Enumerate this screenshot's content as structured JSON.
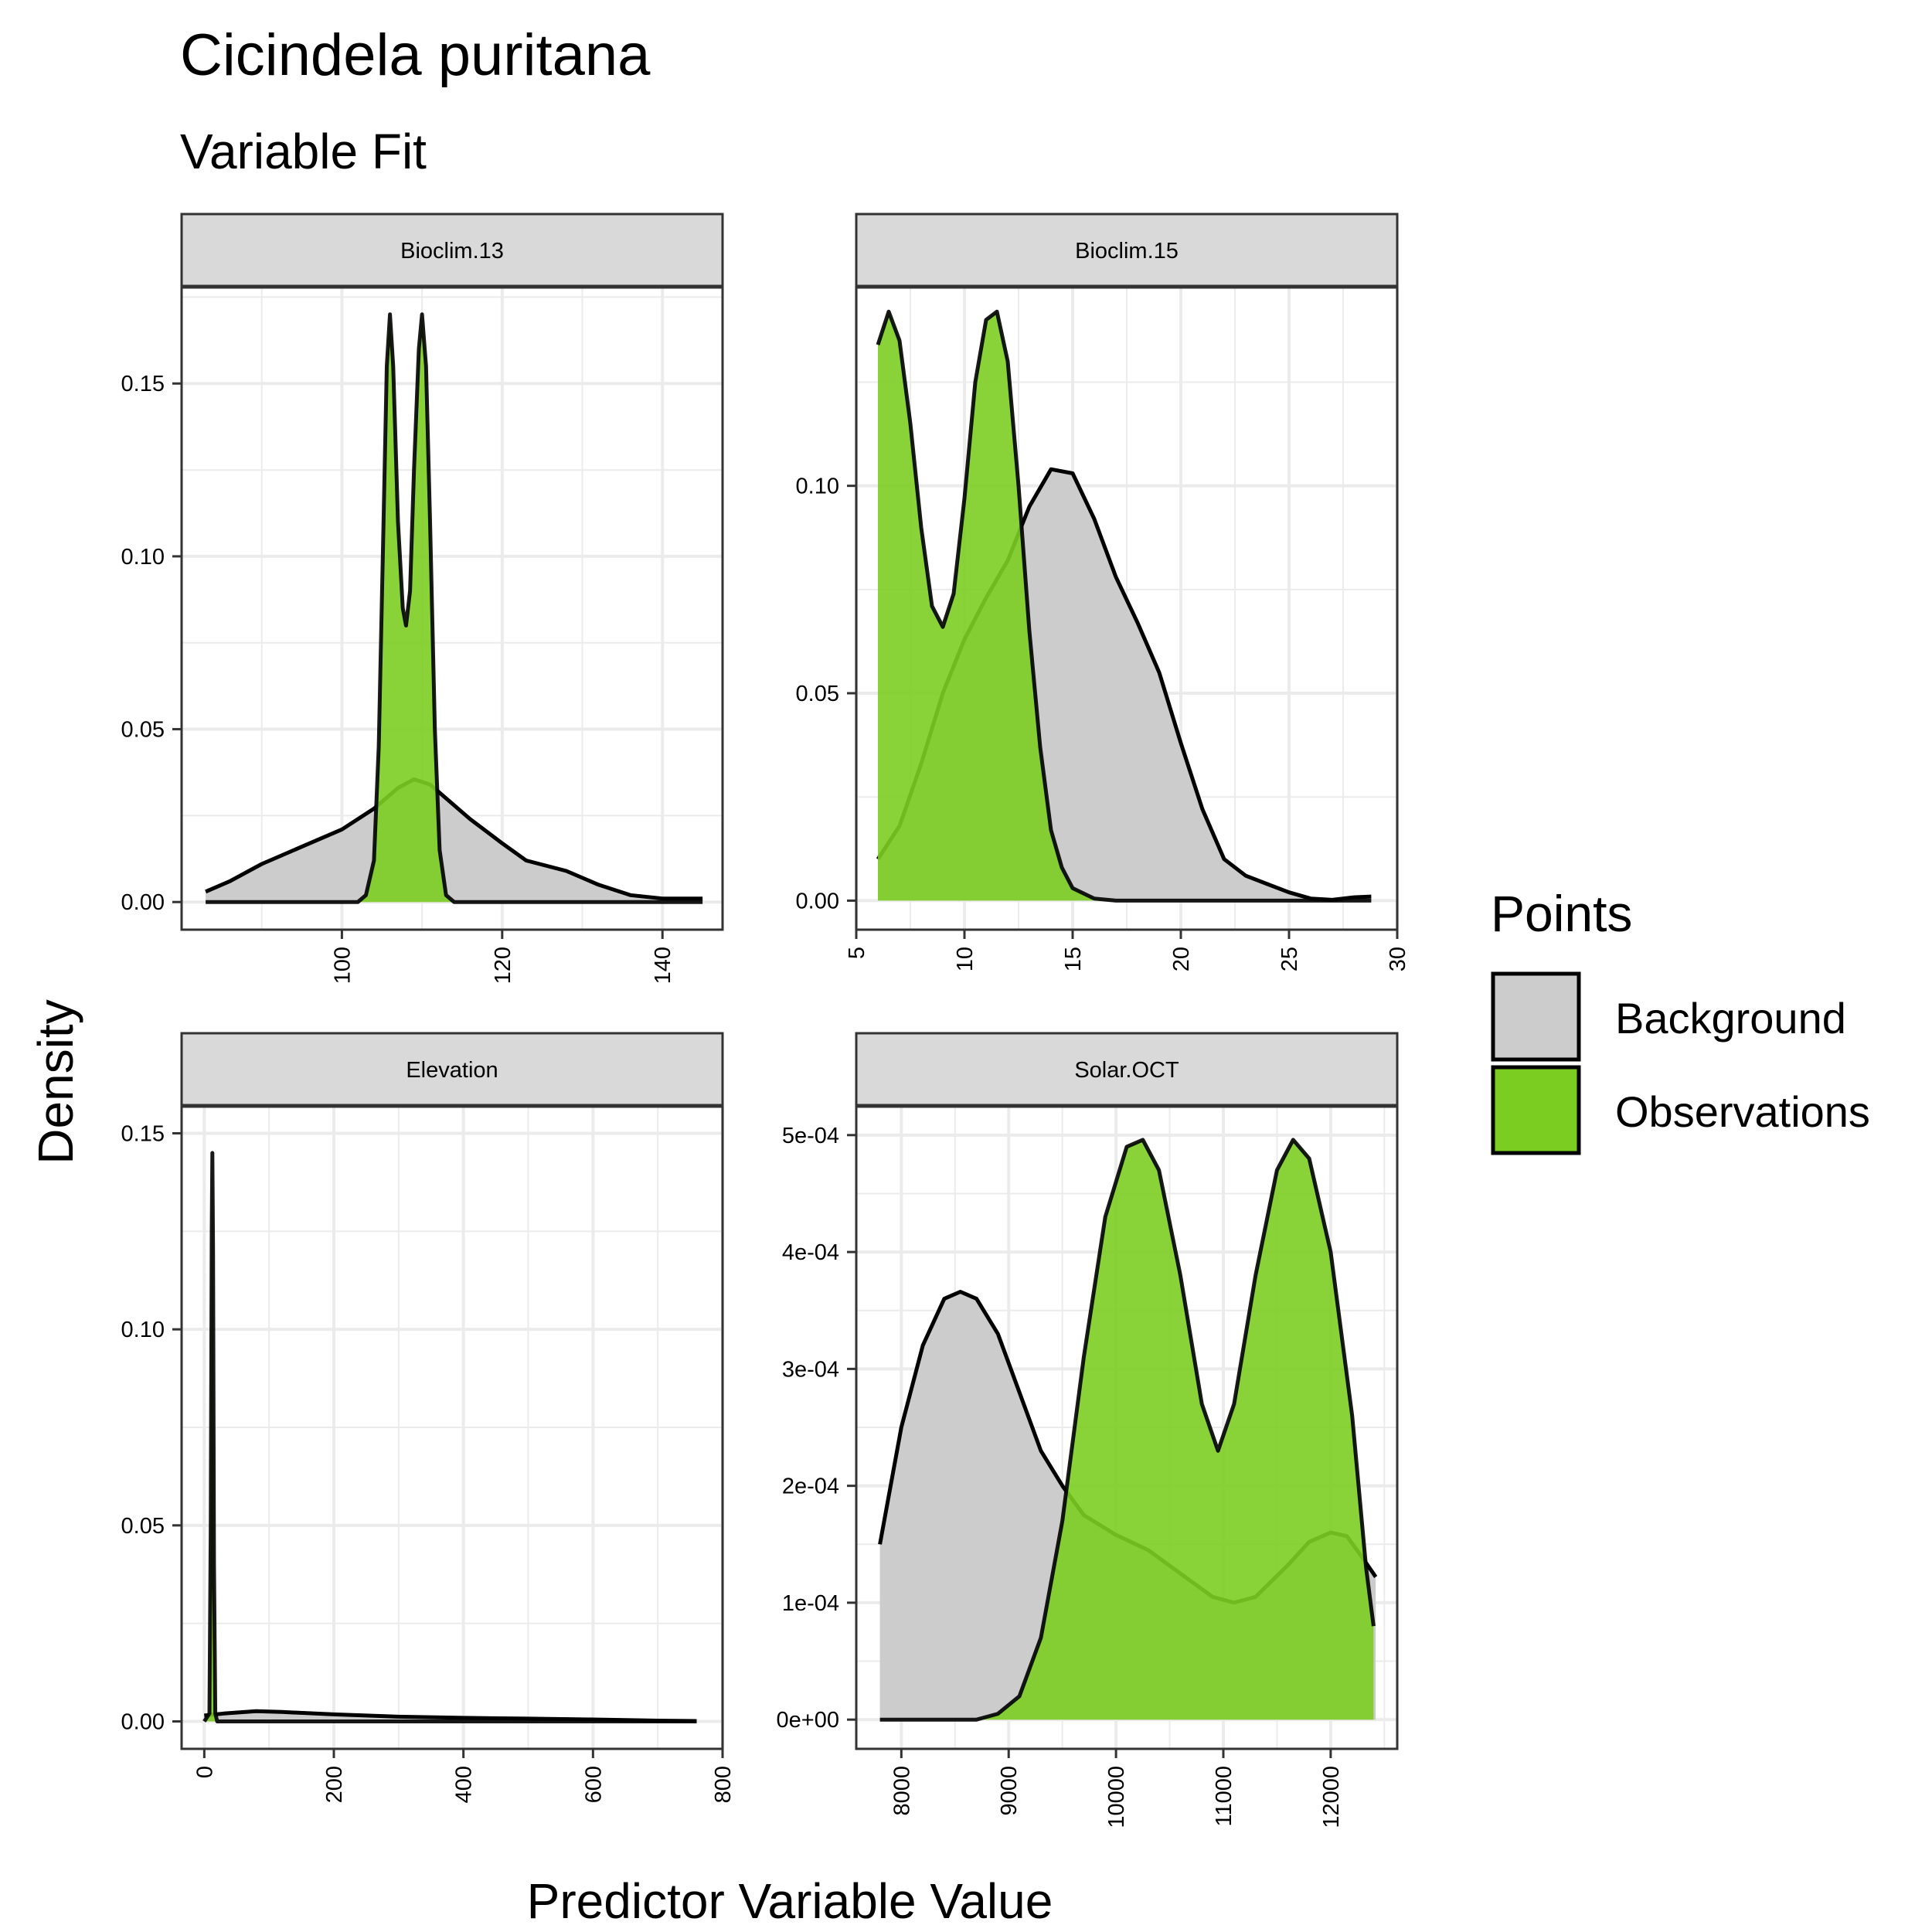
{
  "title": "Cicindela puritana",
  "subtitle": "Variable Fit",
  "ylabel": "Density",
  "xlabel": "Predictor Variable Value",
  "legend": {
    "title": "Points",
    "items": [
      {
        "label": "Background",
        "color": "#cccccc"
      },
      {
        "label": "Observations",
        "color": "#7ccd22"
      }
    ]
  },
  "colors": {
    "background_fill": "#cccccc",
    "observation_fill": "#7ccd22",
    "strip_fill": "#d9d9d9",
    "grid": "#ebebeb",
    "line": "#000000"
  },
  "chart_data": [
    {
      "type": "area",
      "panel": "Bioclim.13",
      "xlim": [
        80,
        147.5
      ],
      "ylim": [
        -0.008,
        0.178
      ],
      "xticks": [
        100,
        120,
        140
      ],
      "xtick_labels": [
        "100",
        "120",
        "140"
      ],
      "yticks": [
        0,
        0.05,
        0.1,
        0.15
      ],
      "ytick_labels": [
        "0.00",
        "0.05",
        "0.10",
        "0.15"
      ],
      "series": [
        {
          "name": "Background",
          "points": [
            [
              83,
              0.003
            ],
            [
              86,
              0.006
            ],
            [
              90,
              0.011
            ],
            [
              95,
              0.016
            ],
            [
              100,
              0.021
            ],
            [
              104,
              0.027
            ],
            [
              107,
              0.033
            ],
            [
              109,
              0.0355
            ],
            [
              111,
              0.034
            ],
            [
              113,
              0.03
            ],
            [
              116,
              0.024
            ],
            [
              120,
              0.017
            ],
            [
              123,
              0.012
            ],
            [
              128,
              0.009
            ],
            [
              132,
              0.005
            ],
            [
              136,
              0.002
            ],
            [
              140,
              0.001
            ],
            [
              145,
              0.001
            ]
          ]
        },
        {
          "name": "Observations",
          "points": [
            [
              83,
              0
            ],
            [
              102,
              0
            ],
            [
              103,
              0.002
            ],
            [
              104,
              0.012
            ],
            [
              104.6,
              0.045
            ],
            [
              105.2,
              0.11
            ],
            [
              105.6,
              0.155
            ],
            [
              106,
              0.17
            ],
            [
              106.4,
              0.155
            ],
            [
              107,
              0.11
            ],
            [
              107.6,
              0.085
            ],
            [
              108,
              0.08
            ],
            [
              108.5,
              0.09
            ],
            [
              109,
              0.125
            ],
            [
              109.6,
              0.16
            ],
            [
              110,
              0.17
            ],
            [
              110.5,
              0.155
            ],
            [
              111,
              0.11
            ],
            [
              111.6,
              0.05
            ],
            [
              112.2,
              0.015
            ],
            [
              113,
              0.002
            ],
            [
              114,
              0
            ],
            [
              145,
              0
            ]
          ]
        }
      ]
    },
    {
      "type": "area",
      "panel": "Bioclim.15",
      "xlim": [
        5,
        30
      ],
      "ylim": [
        -0.007,
        0.148
      ],
      "xticks": [
        5,
        10,
        15,
        20,
        25,
        30
      ],
      "xtick_labels": [
        "5",
        "10",
        "15",
        "20",
        "25",
        "30"
      ],
      "yticks": [
        0,
        0.05,
        0.1
      ],
      "ytick_labels": [
        "0.00",
        "0.05",
        "0.10"
      ],
      "series": [
        {
          "name": "Background",
          "points": [
            [
              6,
              0.01
            ],
            [
              7,
              0.018
            ],
            [
              8,
              0.033
            ],
            [
              9,
              0.05
            ],
            [
              10,
              0.063
            ],
            [
              11,
              0.073
            ],
            [
              12,
              0.082
            ],
            [
              13,
              0.095
            ],
            [
              14,
              0.104
            ],
            [
              15,
              0.103
            ],
            [
              16,
              0.092
            ],
            [
              17,
              0.078
            ],
            [
              18,
              0.067
            ],
            [
              19,
              0.055
            ],
            [
              20,
              0.038
            ],
            [
              21,
              0.022
            ],
            [
              22,
              0.01
            ],
            [
              23,
              0.006
            ],
            [
              24,
              0.004
            ],
            [
              25,
              0.002
            ],
            [
              26,
              0.0005
            ],
            [
              27,
              0.0002
            ],
            [
              28,
              0.0008
            ],
            [
              28.8,
              0.001
            ]
          ]
        },
        {
          "name": "Observations",
          "points": [
            [
              6,
              0.134
            ],
            [
              6.5,
              0.142
            ],
            [
              7,
              0.135
            ],
            [
              7.5,
              0.115
            ],
            [
              8,
              0.09
            ],
            [
              8.5,
              0.071
            ],
            [
              9,
              0.066
            ],
            [
              9.5,
              0.074
            ],
            [
              10,
              0.097
            ],
            [
              10.5,
              0.125
            ],
            [
              11,
              0.14
            ],
            [
              11.5,
              0.142
            ],
            [
              12,
              0.13
            ],
            [
              12.5,
              0.1
            ],
            [
              13,
              0.065
            ],
            [
              13.5,
              0.037
            ],
            [
              14,
              0.017
            ],
            [
              14.5,
              0.008
            ],
            [
              15,
              0.003
            ],
            [
              16,
              0.0005
            ],
            [
              17,
              0
            ],
            [
              28.8,
              0
            ]
          ]
        }
      ]
    },
    {
      "type": "area",
      "panel": "Elevation",
      "xlim": [
        -35,
        800
      ],
      "ylim": [
        -0.007,
        0.157
      ],
      "xticks": [
        0,
        200,
        400,
        600,
        800
      ],
      "xtick_labels": [
        "0",
        "200",
        "400",
        "600",
        "800"
      ],
      "yticks": [
        0,
        0.05,
        0.1,
        0.15
      ],
      "ytick_labels": [
        "0.00",
        "0.05",
        "0.10",
        "0.15"
      ],
      "series": [
        {
          "name": "Background",
          "points": [
            [
              0,
              0.0015
            ],
            [
              30,
              0.002
            ],
            [
              80,
              0.0026
            ],
            [
              120,
              0.0024
            ],
            [
              200,
              0.0018
            ],
            [
              300,
              0.0012
            ],
            [
              400,
              0.0009
            ],
            [
              500,
              0.0007
            ],
            [
              600,
              0.0005
            ],
            [
              700,
              0.0002
            ],
            [
              760,
              0.0001
            ]
          ]
        },
        {
          "name": "Observations",
          "points": [
            [
              0,
              0
            ],
            [
              8,
              0.002
            ],
            [
              10,
              0.05
            ],
            [
              11.5,
              0.125
            ],
            [
              12.5,
              0.145
            ],
            [
              13.5,
              0.12
            ],
            [
              15,
              0.04
            ],
            [
              17,
              0.002
            ],
            [
              20,
              0
            ],
            [
              760,
              0
            ]
          ]
        }
      ]
    },
    {
      "type": "area",
      "panel": "Solar.OCT",
      "xlim": [
        7580,
        12620
      ],
      "ylim": [
        -2.5e-05,
        0.000525
      ],
      "xticks": [
        8000,
        9000,
        10000,
        11000,
        12000
      ],
      "xtick_labels": [
        "8000",
        "9000",
        "10000",
        "11000",
        "12000"
      ],
      "yticks": [
        0,
        0.0001,
        0.0002,
        0.0003,
        0.0004,
        0.0005
      ],
      "ytick_labels": [
        "0e+00",
        "1e-04",
        "2e-04",
        "3e-04",
        "4e-04",
        "5e-04"
      ],
      "series": [
        {
          "name": "Background",
          "points": [
            [
              7800,
              0.00015
            ],
            [
              8000,
              0.00025
            ],
            [
              8200,
              0.00032
            ],
            [
              8400,
              0.00036
            ],
            [
              8550,
              0.000366
            ],
            [
              8700,
              0.00036
            ],
            [
              8900,
              0.00033
            ],
            [
              9100,
              0.00028
            ],
            [
              9300,
              0.00023
            ],
            [
              9500,
              0.0002
            ],
            [
              9700,
              0.000175
            ],
            [
              10000,
              0.000158
            ],
            [
              10300,
              0.000145
            ],
            [
              10600,
              0.000125
            ],
            [
              10900,
              0.000105
            ],
            [
              11100,
              0.0001
            ],
            [
              11300,
              0.000105
            ],
            [
              11600,
              0.000132
            ],
            [
              11800,
              0.000152
            ],
            [
              12000,
              0.00016
            ],
            [
              12150,
              0.000157
            ],
            [
              12300,
              0.000138
            ],
            [
              12420,
              0.000122
            ]
          ]
        },
        {
          "name": "Observations",
          "points": [
            [
              7800,
              0
            ],
            [
              8700,
              0
            ],
            [
              8900,
              5e-06
            ],
            [
              9100,
              2e-05
            ],
            [
              9300,
              7e-05
            ],
            [
              9500,
              0.00017
            ],
            [
              9700,
              0.00031
            ],
            [
              9900,
              0.00043
            ],
            [
              10100,
              0.00049
            ],
            [
              10250,
              0.000496
            ],
            [
              10400,
              0.00047
            ],
            [
              10600,
              0.00038
            ],
            [
              10800,
              0.00027
            ],
            [
              10950,
              0.00023
            ],
            [
              11100,
              0.00027
            ],
            [
              11300,
              0.00038
            ],
            [
              11500,
              0.00047
            ],
            [
              11650,
              0.000496
            ],
            [
              11800,
              0.00048
            ],
            [
              12000,
              0.0004
            ],
            [
              12200,
              0.00026
            ],
            [
              12330,
              0.00013
            ],
            [
              12400,
              8e-05
            ]
          ]
        }
      ]
    }
  ]
}
